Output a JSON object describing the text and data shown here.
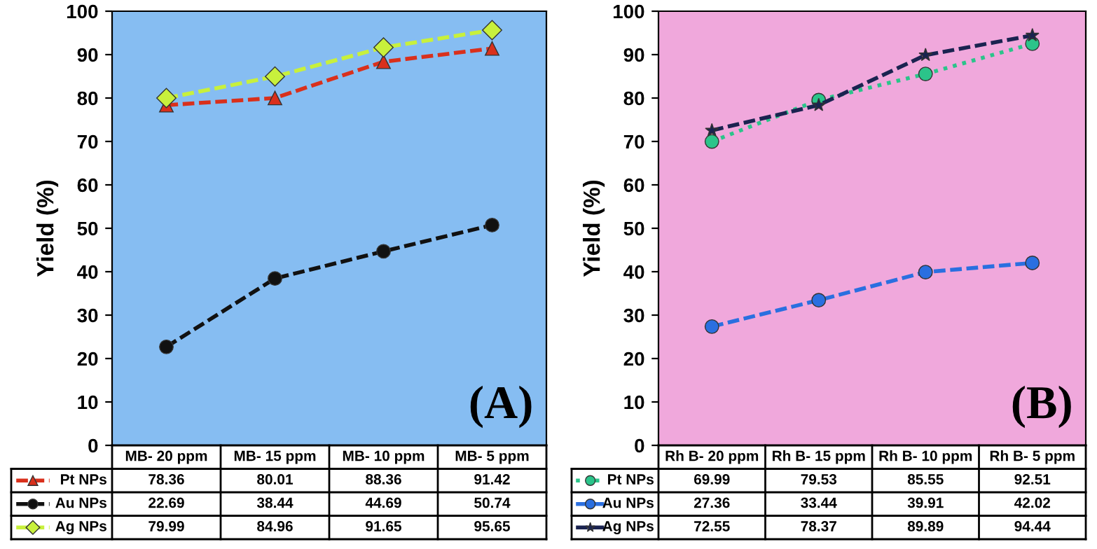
{
  "chart_data": [
    {
      "type": "line",
      "ylabel": "Yield (%)",
      "categories": [
        "MB- 20 ppm",
        "MB- 15 ppm",
        "MB- 10 ppm",
        "MB- 5 ppm"
      ],
      "ylim": [
        0,
        100
      ],
      "yticks": [
        0,
        10,
        20,
        30,
        40,
        50,
        60,
        70,
        80,
        90,
        100
      ],
      "grid": false,
      "legend": "bottom",
      "data_labels": true,
      "tick_labels": "y",
      "line_style": "dashed",
      "annotations": [
        "(A)"
      ],
      "series": [
        {
          "name": "Pt NPs",
          "color": "#d9301c",
          "marker": "triangle",
          "values": [
            78.36,
            80.01,
            88.36,
            91.42
          ]
        },
        {
          "name": "Au NPs",
          "color": "#111111",
          "marker": "circle",
          "values": [
            22.69,
            38.44,
            44.69,
            50.74
          ]
        },
        {
          "name": "Ag NPs",
          "color": "#c8f03c",
          "marker": "diamond",
          "values": [
            79.99,
            84.96,
            91.65,
            95.65
          ]
        }
      ]
    },
    {
      "type": "line",
      "ylabel": "Yield (%)",
      "categories": [
        "Rh B- 20 ppm",
        "Rh B- 15 ppm",
        "Rh B- 10 ppm",
        "Rh B- 5 ppm"
      ],
      "ylim": [
        0,
        100
      ],
      "yticks": [
        0,
        10,
        20,
        30,
        40,
        50,
        60,
        70,
        80,
        90,
        100
      ],
      "grid": false,
      "legend": "bottom",
      "data_labels": true,
      "tick_labels": "y",
      "line_style": "dashed",
      "annotations": [
        "(B)"
      ],
      "series": [
        {
          "name": "Pt NPs",
          "color": "#2bc48a",
          "marker": "circle",
          "line_style": "dotted",
          "values": [
            69.99,
            79.53,
            85.55,
            92.51
          ]
        },
        {
          "name": "Au NPs",
          "color": "#2a6fe0",
          "marker": "circle",
          "values": [
            27.36,
            33.44,
            39.91,
            42.02
          ]
        },
        {
          "name": "Ag NPs",
          "color": "#1a2350",
          "marker": "star",
          "values": [
            72.55,
            78.37,
            89.89,
            94.44
          ]
        }
      ]
    }
  ]
}
